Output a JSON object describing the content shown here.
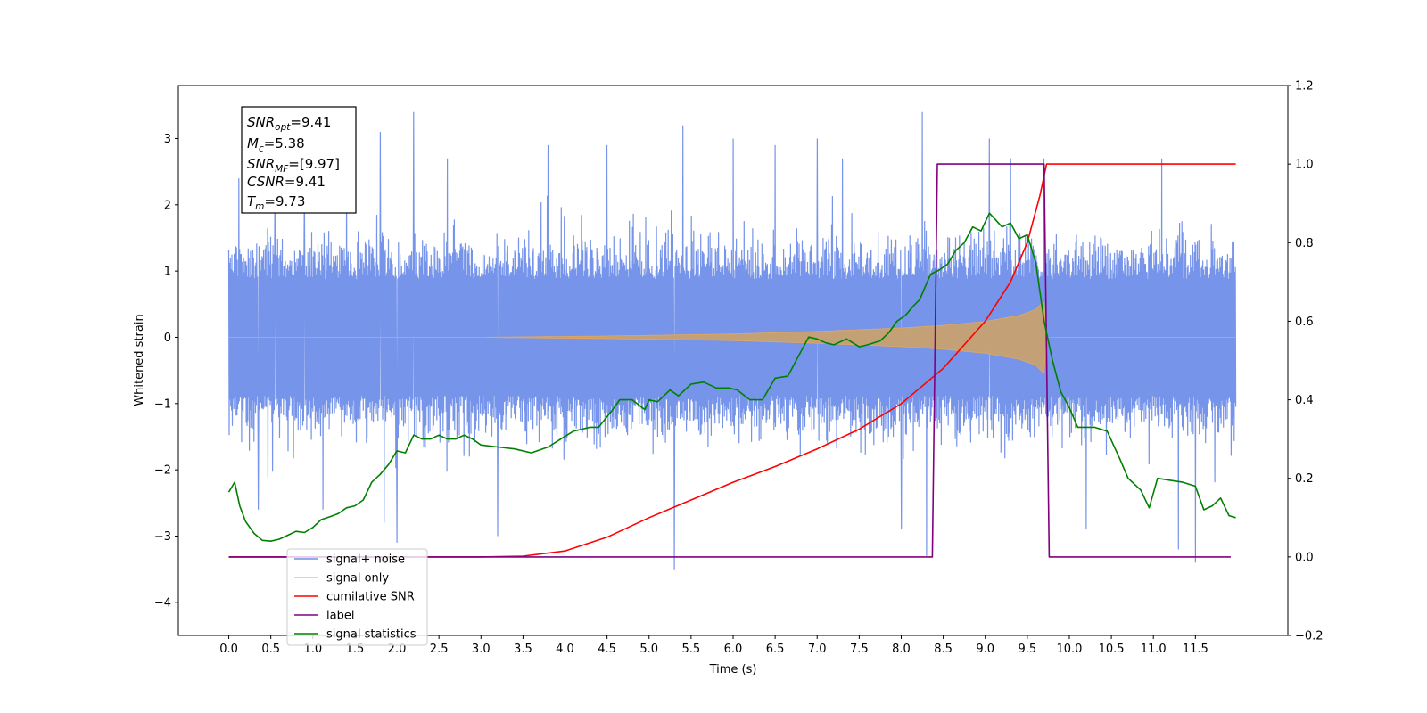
{
  "chart_data": {
    "type": "line",
    "xlabel": "Time (s)",
    "ylabel": "Whitened strain",
    "xlim": [
      -0.6,
      12.6
    ],
    "ylim": [
      -4.5,
      3.8
    ],
    "y2lim": [
      -0.2,
      1.2
    ],
    "grid": false,
    "x_ticks": [
      0.0,
      0.5,
      1.0,
      1.5,
      2.0,
      2.5,
      3.0,
      3.5,
      4.0,
      4.5,
      5.0,
      5.5,
      6.0,
      6.5,
      7.0,
      7.5,
      8.0,
      8.5,
      9.0,
      9.5,
      10.0,
      10.5,
      11.0,
      11.5
    ],
    "x_tick_labels": [
      "0.0",
      "0.5",
      "1.0",
      "1.5",
      "2.0",
      "2.5",
      "3.0",
      "3.5",
      "4.0",
      "4.5",
      "5.0",
      "5.5",
      "6.0",
      "6.5",
      "7.0",
      "7.5",
      "8.0",
      "8.5",
      "9.0",
      "9.5",
      "10.0",
      "10.5",
      "11.0",
      "11.5"
    ],
    "y_ticks": [
      3,
      2,
      1,
      0,
      -1,
      -2,
      -3,
      -4
    ],
    "y_tick_labels": [
      "3",
      "2",
      "1",
      "0",
      "−1",
      "−2",
      "−3",
      "−4"
    ],
    "y2_ticks": [
      1.2,
      1.0,
      0.8,
      0.6,
      0.4,
      0.2,
      0.0,
      -0.2
    ],
    "y2_tick_labels": [
      "1.2",
      "1.0",
      "0.8",
      "0.6",
      "0.4",
      "0.2",
      "0.0",
      "−0.2"
    ],
    "annotation": {
      "lines": [
        {
          "main": "SNR",
          "sub": "opt",
          "rest": "=9.41"
        },
        {
          "main": "M",
          "sub": "c",
          "rest": "=5.38"
        },
        {
          "main": "SNR",
          "sub": "MF",
          "rest": "=[9.97]"
        },
        {
          "main": "CSNR",
          "sub": "",
          "rest": "=9.41"
        },
        {
          "main": "T",
          "sub": "m",
          "rest": "=9.73"
        }
      ]
    },
    "legend": {
      "position": "lower-left",
      "entries": [
        {
          "label": "signal+ noise",
          "color": "#6f8ee8"
        },
        {
          "label": "signal only",
          "color": "#ffbf5e"
        },
        {
          "label": "cumilative SNR",
          "color": "#ff0000"
        },
        {
          "label": "label",
          "color": "#800080"
        },
        {
          "label": "signal statistics",
          "color": "#008000"
        }
      ]
    },
    "series": [
      {
        "name": "signal+ noise",
        "axis": "left",
        "color": "#6f8ee8",
        "style": "noise-band",
        "x_range": [
          0.0,
          11.98
        ],
        "typical_extent": [
          -1.6,
          1.6
        ],
        "spikes": [
          {
            "x": 0.12,
            "y": 2.4
          },
          {
            "x": 0.35,
            "y": -2.6
          },
          {
            "x": 0.55,
            "y": 2.2
          },
          {
            "x": 0.9,
            "y": 2.2
          },
          {
            "x": 1.12,
            "y": -2.6
          },
          {
            "x": 1.4,
            "y": 2.4
          },
          {
            "x": 1.8,
            "y": 3.1
          },
          {
            "x": 1.85,
            "y": -2.8
          },
          {
            "x": 2.0,
            "y": -3.1
          },
          {
            "x": 2.2,
            "y": 3.4
          },
          {
            "x": 2.6,
            "y": 2.7
          },
          {
            "x": 3.2,
            "y": -3.0
          },
          {
            "x": 3.8,
            "y": 2.9
          },
          {
            "x": 4.5,
            "y": 2.9
          },
          {
            "x": 5.3,
            "y": -3.5
          },
          {
            "x": 5.4,
            "y": 3.2
          },
          {
            "x": 6.0,
            "y": 3.0
          },
          {
            "x": 6.5,
            "y": 2.9
          },
          {
            "x": 7.0,
            "y": 3.0
          },
          {
            "x": 7.3,
            "y": 2.7
          },
          {
            "x": 8.0,
            "y": -2.9
          },
          {
            "x": 8.25,
            "y": 3.4
          },
          {
            "x": 8.3,
            "y": -3.3
          },
          {
            "x": 9.05,
            "y": 3.0
          },
          {
            "x": 9.3,
            "y": 2.7
          },
          {
            "x": 9.7,
            "y": 2.7
          },
          {
            "x": 10.2,
            "y": -2.9
          },
          {
            "x": 11.1,
            "y": 2.7
          },
          {
            "x": 11.3,
            "y": -3.2
          },
          {
            "x": 11.5,
            "y": -3.4
          }
        ]
      },
      {
        "name": "signal only",
        "axis": "left",
        "color": "#c8a070",
        "style": "chirp-envelope",
        "envelope": [
          {
            "x": 0.0,
            "y": 0.0
          },
          {
            "x": 3.0,
            "y": 0.0
          },
          {
            "x": 4.5,
            "y": 0.02
          },
          {
            "x": 6.0,
            "y": 0.05
          },
          {
            "x": 7.0,
            "y": 0.09
          },
          {
            "x": 8.0,
            "y": 0.14
          },
          {
            "x": 8.5,
            "y": 0.18
          },
          {
            "x": 9.0,
            "y": 0.24
          },
          {
            "x": 9.4,
            "y": 0.33
          },
          {
            "x": 9.6,
            "y": 0.42
          },
          {
            "x": 9.7,
            "y": 0.55
          },
          {
            "x": 9.73,
            "y": 0.0
          },
          {
            "x": 11.98,
            "y": 0.0
          }
        ]
      },
      {
        "name": "cumilative SNR",
        "axis": "right",
        "color": "#ff0000",
        "points": [
          {
            "x": 0.0,
            "y": 0.0
          },
          {
            "x": 3.0,
            "y": 0.0
          },
          {
            "x": 3.5,
            "y": 0.002
          },
          {
            "x": 4.0,
            "y": 0.015
          },
          {
            "x": 4.5,
            "y": 0.05
          },
          {
            "x": 5.0,
            "y": 0.1
          },
          {
            "x": 5.5,
            "y": 0.145
          },
          {
            "x": 6.0,
            "y": 0.19
          },
          {
            "x": 6.5,
            "y": 0.23
          },
          {
            "x": 7.0,
            "y": 0.275
          },
          {
            "x": 7.5,
            "y": 0.325
          },
          {
            "x": 8.0,
            "y": 0.39
          },
          {
            "x": 8.5,
            "y": 0.48
          },
          {
            "x": 9.0,
            "y": 0.6
          },
          {
            "x": 9.3,
            "y": 0.7
          },
          {
            "x": 9.5,
            "y": 0.8
          },
          {
            "x": 9.65,
            "y": 0.92
          },
          {
            "x": 9.73,
            "y": 1.0
          },
          {
            "x": 11.98,
            "y": 1.0
          }
        ]
      },
      {
        "name": "label",
        "axis": "right",
        "color": "#800080",
        "points": [
          {
            "x": 0.0,
            "y": 0.0
          },
          {
            "x": 8.37,
            "y": 0.0
          },
          {
            "x": 8.43,
            "y": 1.0
          },
          {
            "x": 9.7,
            "y": 1.0
          },
          {
            "x": 9.76,
            "y": 0.0
          },
          {
            "x": 11.92,
            "y": 0.0
          }
        ]
      },
      {
        "name": "signal statistics",
        "axis": "right",
        "color": "#008000",
        "points": [
          {
            "x": 0.0,
            "y": 0.165
          },
          {
            "x": 0.07,
            "y": 0.19
          },
          {
            "x": 0.13,
            "y": 0.13
          },
          {
            "x": 0.2,
            "y": 0.09
          },
          {
            "x": 0.3,
            "y": 0.06
          },
          {
            "x": 0.4,
            "y": 0.042
          },
          {
            "x": 0.5,
            "y": 0.04
          },
          {
            "x": 0.6,
            "y": 0.045
          },
          {
            "x": 0.7,
            "y": 0.055
          },
          {
            "x": 0.8,
            "y": 0.065
          },
          {
            "x": 0.9,
            "y": 0.062
          },
          {
            "x": 1.0,
            "y": 0.075
          },
          {
            "x": 1.1,
            "y": 0.095
          },
          {
            "x": 1.2,
            "y": 0.102
          },
          {
            "x": 1.3,
            "y": 0.11
          },
          {
            "x": 1.4,
            "y": 0.125
          },
          {
            "x": 1.5,
            "y": 0.13
          },
          {
            "x": 1.6,
            "y": 0.145
          },
          {
            "x": 1.7,
            "y": 0.19
          },
          {
            "x": 1.8,
            "y": 0.21
          },
          {
            "x": 1.9,
            "y": 0.235
          },
          {
            "x": 2.0,
            "y": 0.27
          },
          {
            "x": 2.1,
            "y": 0.265
          },
          {
            "x": 2.2,
            "y": 0.31
          },
          {
            "x": 2.3,
            "y": 0.3
          },
          {
            "x": 2.4,
            "y": 0.3
          },
          {
            "x": 2.5,
            "y": 0.31
          },
          {
            "x": 2.6,
            "y": 0.3
          },
          {
            "x": 2.7,
            "y": 0.3
          },
          {
            "x": 2.8,
            "y": 0.31
          },
          {
            "x": 2.9,
            "y": 0.3
          },
          {
            "x": 3.0,
            "y": 0.285
          },
          {
            "x": 3.2,
            "y": 0.28
          },
          {
            "x": 3.4,
            "y": 0.275
          },
          {
            "x": 3.6,
            "y": 0.265
          },
          {
            "x": 3.8,
            "y": 0.28
          },
          {
            "x": 3.95,
            "y": 0.3
          },
          {
            "x": 4.1,
            "y": 0.32
          },
          {
            "x": 4.3,
            "y": 0.33
          },
          {
            "x": 4.4,
            "y": 0.33
          },
          {
            "x": 4.55,
            "y": 0.37
          },
          {
            "x": 4.65,
            "y": 0.4
          },
          {
            "x": 4.8,
            "y": 0.4
          },
          {
            "x": 4.95,
            "y": 0.375
          },
          {
            "x": 5.0,
            "y": 0.4
          },
          {
            "x": 5.1,
            "y": 0.395
          },
          {
            "x": 5.25,
            "y": 0.425
          },
          {
            "x": 5.35,
            "y": 0.41
          },
          {
            "x": 5.5,
            "y": 0.44
          },
          {
            "x": 5.65,
            "y": 0.445
          },
          {
            "x": 5.8,
            "y": 0.43
          },
          {
            "x": 5.95,
            "y": 0.43
          },
          {
            "x": 6.05,
            "y": 0.425
          },
          {
            "x": 6.2,
            "y": 0.4
          },
          {
            "x": 6.35,
            "y": 0.4
          },
          {
            "x": 6.5,
            "y": 0.455
          },
          {
            "x": 6.65,
            "y": 0.46
          },
          {
            "x": 6.75,
            "y": 0.5
          },
          {
            "x": 6.9,
            "y": 0.56
          },
          {
            "x": 7.0,
            "y": 0.555
          },
          {
            "x": 7.1,
            "y": 0.545
          },
          {
            "x": 7.2,
            "y": 0.54
          },
          {
            "x": 7.35,
            "y": 0.555
          },
          {
            "x": 7.5,
            "y": 0.535
          },
          {
            "x": 7.6,
            "y": 0.54
          },
          {
            "x": 7.75,
            "y": 0.55
          },
          {
            "x": 7.85,
            "y": 0.57
          },
          {
            "x": 7.95,
            "y": 0.6
          },
          {
            "x": 8.05,
            "y": 0.615
          },
          {
            "x": 8.15,
            "y": 0.64
          },
          {
            "x": 8.22,
            "y": 0.655
          },
          {
            "x": 8.35,
            "y": 0.72
          },
          {
            "x": 8.45,
            "y": 0.73
          },
          {
            "x": 8.55,
            "y": 0.745
          },
          {
            "x": 8.65,
            "y": 0.78
          },
          {
            "x": 8.75,
            "y": 0.8
          },
          {
            "x": 8.85,
            "y": 0.84
          },
          {
            "x": 8.95,
            "y": 0.83
          },
          {
            "x": 9.05,
            "y": 0.875
          },
          {
            "x": 9.2,
            "y": 0.84
          },
          {
            "x": 9.3,
            "y": 0.85
          },
          {
            "x": 9.4,
            "y": 0.81
          },
          {
            "x": 9.5,
            "y": 0.82
          },
          {
            "x": 9.6,
            "y": 0.75
          },
          {
            "x": 9.7,
            "y": 0.6
          },
          {
            "x": 9.8,
            "y": 0.5
          },
          {
            "x": 9.9,
            "y": 0.42
          },
          {
            "x": 10.0,
            "y": 0.38
          },
          {
            "x": 10.1,
            "y": 0.33
          },
          {
            "x": 10.3,
            "y": 0.33
          },
          {
            "x": 10.45,
            "y": 0.32
          },
          {
            "x": 10.6,
            "y": 0.25
          },
          {
            "x": 10.7,
            "y": 0.2
          },
          {
            "x": 10.85,
            "y": 0.17
          },
          {
            "x": 10.95,
            "y": 0.125
          },
          {
            "x": 11.05,
            "y": 0.2
          },
          {
            "x": 11.2,
            "y": 0.195
          },
          {
            "x": 11.35,
            "y": 0.19
          },
          {
            "x": 11.5,
            "y": 0.18
          },
          {
            "x": 11.6,
            "y": 0.12
          },
          {
            "x": 11.7,
            "y": 0.13
          },
          {
            "x": 11.8,
            "y": 0.15
          },
          {
            "x": 11.9,
            "y": 0.105
          },
          {
            "x": 11.98,
            "y": 0.1
          }
        ]
      }
    ]
  }
}
